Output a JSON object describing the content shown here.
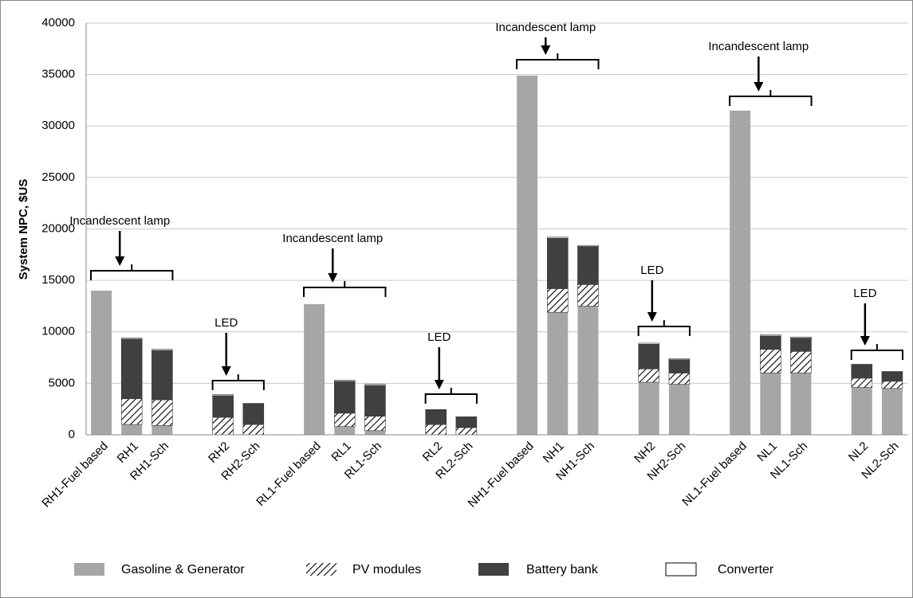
{
  "chart_data": {
    "type": "stacked_bar",
    "ylabel": "System NPC, $US",
    "categories": [
      "RH1-Fuel based",
      "RH1",
      "RH1-Sch",
      null,
      "RH2",
      "RH2-Sch",
      null,
      "RL1-Fuel based",
      "RL1",
      "RL1-Sch",
      null,
      "RL2",
      "RL2-Sch",
      null,
      "NH1-Fuel based",
      "NH1",
      "NH1-Sch",
      null,
      "NH2",
      "NH2-Sch",
      null,
      "NL1-Fuel based",
      "NL1",
      "NL1-Sch",
      null,
      "NL2",
      "NL2-Sch"
    ],
    "series": [
      {
        "name": "Gasoline & Generator",
        "color": "#a6a6a6",
        "values": [
          14000,
          1000,
          900,
          null,
          0,
          0,
          null,
          12700,
          800,
          400,
          null,
          0,
          0,
          null,
          34900,
          11900,
          12500,
          null,
          5100,
          4900,
          null,
          31500,
          6000,
          6000,
          null,
          4600,
          4500
        ]
      },
      {
        "name": "PV modules",
        "color": "#000000",
        "values": [
          0,
          2500,
          2500,
          null,
          1700,
          1000,
          null,
          0,
          1300,
          1400,
          null,
          1000,
          700,
          null,
          0,
          2300,
          2100,
          null,
          1300,
          1100,
          null,
          0,
          2300,
          2100,
          null,
          900,
          700
        ]
      },
      {
        "name": "Battery bank",
        "color": "#404040",
        "values": [
          0,
          5800,
          4800,
          null,
          2100,
          2000,
          null,
          0,
          3100,
          3000,
          null,
          1400,
          1000,
          null,
          0,
          4900,
          3700,
          null,
          2400,
          1300,
          null,
          0,
          1300,
          1300,
          null,
          1300,
          900
        ]
      },
      {
        "name": "Converter",
        "color": "#ffffff",
        "values": [
          0,
          100,
          100,
          null,
          100,
          50,
          null,
          0,
          100,
          100,
          null,
          50,
          50,
          null,
          0,
          100,
          100,
          null,
          100,
          100,
          null,
          0,
          100,
          100,
          null,
          50,
          50
        ]
      }
    ],
    "ylim": [
      0,
      40000
    ],
    "yticks": [
      0,
      5000,
      10000,
      15000,
      20000,
      25000,
      30000,
      35000,
      40000
    ],
    "grid": true,
    "legend": "bottom",
    "annotations": [
      "Incandescent lamp",
      "LED",
      "Incandescent lamp",
      "LED",
      "Incandescent lamp",
      "LED",
      "Incandescent lamp",
      "LED"
    ]
  }
}
